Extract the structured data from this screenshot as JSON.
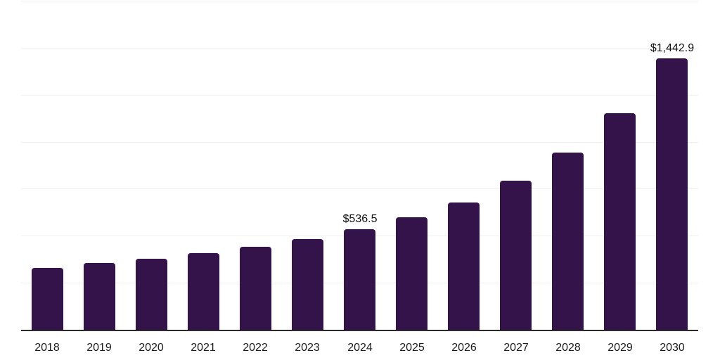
{
  "chart_data": {
    "type": "bar",
    "categories": [
      "2018",
      "2019",
      "2020",
      "2021",
      "2022",
      "2023",
      "2024",
      "2025",
      "2026",
      "2027",
      "2028",
      "2029",
      "2030"
    ],
    "values": [
      330,
      356,
      378,
      408,
      442,
      483,
      536.5,
      600,
      678,
      791,
      941,
      1150,
      1442.9
    ],
    "value_labels": [
      {
        "index": 6,
        "text": "$536.5"
      },
      {
        "index": 12,
        "text": "$1,442.9"
      }
    ],
    "title": "",
    "xlabel": "",
    "ylabel": "",
    "ylim": [
      0,
      1750
    ],
    "grid_step": 250,
    "grid": true,
    "legend": false,
    "colors": {
      "bar": "#331349",
      "axis": "#2b2b2b",
      "grid": "#f0f0f3",
      "tick_label": "#1c1c1c",
      "value_label": "#111111"
    }
  }
}
